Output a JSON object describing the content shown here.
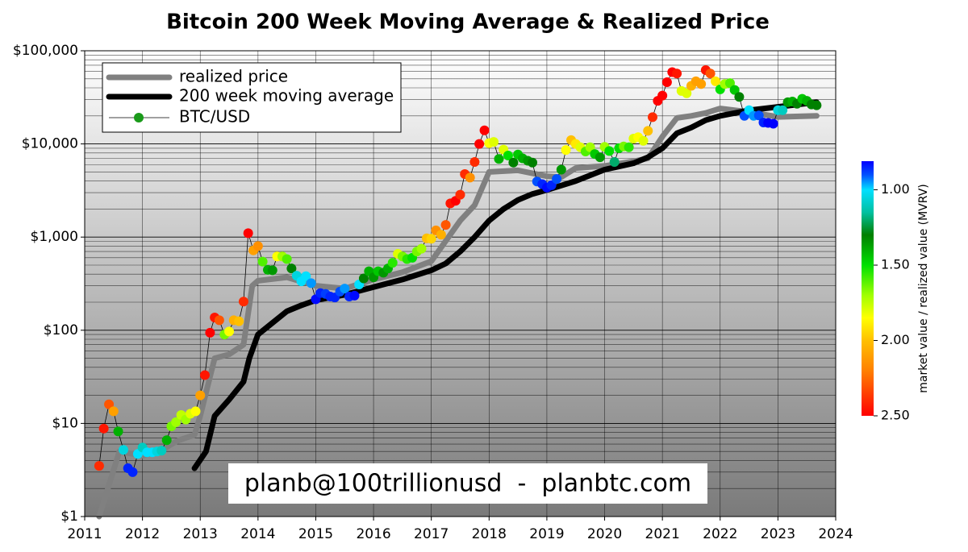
{
  "chart_data": {
    "type": "line",
    "title": "Bitcoin 200 Week Moving Average & Realized Price",
    "annotation": "planb@100trillionusd  -  planbtc.com",
    "xlim": [
      2011,
      2024
    ],
    "xticks": [
      2011,
      2012,
      2013,
      2014,
      2015,
      2016,
      2017,
      2018,
      2019,
      2020,
      2021,
      2022,
      2023,
      2024
    ],
    "ylim": [
      1,
      100000
    ],
    "log_y": true,
    "yticks": [
      {
        "value": 1,
        "label": "$1"
      },
      {
        "value": 10,
        "label": "$10"
      },
      {
        "value": 100,
        "label": "$100"
      },
      {
        "value": 1000,
        "label": "$1,000"
      },
      {
        "value": 10000,
        "label": "$10,000"
      },
      {
        "value": 100000,
        "label": "$100,000"
      }
    ],
    "yminor_ticks": [
      2,
      3,
      4,
      5,
      6,
      7,
      8,
      9,
      20,
      30,
      40,
      50,
      60,
      70,
      80,
      90,
      200,
      300,
      400,
      500,
      600,
      700,
      800,
      900,
      2000,
      3000,
      4000,
      5000,
      6000,
      7000,
      8000,
      9000,
      20000,
      30000,
      40000,
      50000,
      60000,
      70000,
      80000,
      90000
    ],
    "grid": true,
    "legend": "upper left",
    "series": [
      {
        "name": "realized price",
        "color": "#808080",
        "x": [
          2011.25,
          2011.6,
          2012.0,
          2012.3,
          2012.6,
          2012.9,
          2013.0,
          2013.25,
          2013.5,
          2013.75,
          2013.9,
          2014.0,
          2014.5,
          2015.0,
          2015.5,
          2016.0,
          2016.5,
          2017.0,
          2017.5,
          2017.75,
          2018.0,
          2018.5,
          2019.0,
          2019.25,
          2019.5,
          2020.0,
          2020.5,
          2020.75,
          2021.0,
          2021.25,
          2021.5,
          2021.75,
          2022.0,
          2022.5,
          2023.0,
          2023.67
        ],
        "values": [
          1,
          5,
          4.5,
          5,
          6.5,
          7.5,
          12,
          50,
          55,
          70,
          300,
          340,
          370,
          300,
          280,
          350,
          420,
          550,
          1500,
          2200,
          5000,
          5200,
          4500,
          4400,
          5500,
          5800,
          6500,
          7000,
          12000,
          19000,
          20000,
          21500,
          24000,
          22000,
          19500,
          20000
        ]
      },
      {
        "name": "200 week moving average",
        "color": "#000000",
        "x": [
          2012.9,
          2013.1,
          2013.25,
          2013.5,
          2013.75,
          2013.85,
          2014.0,
          2014.25,
          2014.5,
          2014.75,
          2015.0,
          2015.5,
          2016.0,
          2016.5,
          2017.0,
          2017.25,
          2017.5,
          2017.75,
          2018.0,
          2018.25,
          2018.5,
          2018.75,
          2019.0,
          2019.5,
          2020.0,
          2020.5,
          2020.75,
          2021.0,
          2021.25,
          2021.5,
          2021.75,
          2022.0,
          2022.5,
          2023.0,
          2023.67
        ],
        "values": [
          3.3,
          5,
          12,
          18,
          28,
          50,
          90,
          120,
          160,
          185,
          210,
          240,
          290,
          350,
          440,
          520,
          700,
          1000,
          1500,
          2000,
          2500,
          2900,
          3200,
          4000,
          5300,
          6200,
          7200,
          9000,
          13000,
          15000,
          18000,
          20000,
          23000,
          25000,
          28000
        ]
      },
      {
        "name": "BTC/USD",
        "type": "scatter",
        "color": "#1a9a1a",
        "x": [
          2011.25,
          2011.33,
          2011.42,
          2011.5,
          2011.58,
          2011.67,
          2011.75,
          2011.83,
          2011.92,
          2012.0,
          2012.08,
          2012.17,
          2012.25,
          2012.33,
          2012.42,
          2012.5,
          2012.58,
          2012.67,
          2012.75,
          2012.83,
          2012.92,
          2013.0,
          2013.08,
          2013.17,
          2013.25,
          2013.33,
          2013.42,
          2013.5,
          2013.58,
          2013.67,
          2013.75,
          2013.83,
          2013.92,
          2014.0,
          2014.08,
          2014.17,
          2014.25,
          2014.33,
          2014.42,
          2014.5,
          2014.58,
          2014.67,
          2014.75,
          2014.83,
          2014.92,
          2015.0,
          2015.08,
          2015.17,
          2015.25,
          2015.33,
          2015.42,
          2015.5,
          2015.58,
          2015.67,
          2015.75,
          2015.83,
          2015.92,
          2016.0,
          2016.08,
          2016.17,
          2016.25,
          2016.33,
          2016.42,
          2016.5,
          2016.58,
          2016.67,
          2016.75,
          2016.83,
          2016.92,
          2017.0,
          2017.08,
          2017.17,
          2017.25,
          2017.33,
          2017.42,
          2017.5,
          2017.58,
          2017.67,
          2017.75,
          2017.83,
          2017.92,
          2018.0,
          2018.08,
          2018.17,
          2018.25,
          2018.33,
          2018.42,
          2018.5,
          2018.58,
          2018.67,
          2018.75,
          2018.83,
          2018.92,
          2019.0,
          2019.08,
          2019.17,
          2019.25,
          2019.33,
          2019.42,
          2019.5,
          2019.58,
          2019.67,
          2019.75,
          2019.83,
          2019.92,
          2020.0,
          2020.08,
          2020.17,
          2020.25,
          2020.33,
          2020.42,
          2020.5,
          2020.58,
          2020.67,
          2020.75,
          2020.83,
          2020.92,
          2021.0,
          2021.08,
          2021.17,
          2021.25,
          2021.33,
          2021.42,
          2021.5,
          2021.58,
          2021.67,
          2021.75,
          2021.83,
          2021.92,
          2022.0,
          2022.08,
          2022.17,
          2022.25,
          2022.33,
          2022.42,
          2022.5,
          2022.58,
          2022.67,
          2022.75,
          2022.83,
          2022.92,
          2023.0,
          2023.08,
          2023.17,
          2023.25,
          2023.33,
          2023.42,
          2023.5,
          2023.58,
          2023.67
        ],
        "values": [
          3.5,
          8.8,
          16,
          13.5,
          8.2,
          5.2,
          3.3,
          3.0,
          4.7,
          5.5,
          4.9,
          4.9,
          5.0,
          5.1,
          6.6,
          9.3,
          10.3,
          12.3,
          11,
          12.7,
          13.5,
          20,
          33,
          94,
          137,
          128,
          90,
          97,
          128,
          125,
          203,
          1100,
          720,
          800,
          545,
          445,
          440,
          620,
          620,
          580,
          460,
          385,
          335,
          380,
          320,
          215,
          250,
          245,
          230,
          225,
          260,
          280,
          230,
          235,
          310,
          360,
          430,
          370,
          430,
          415,
          460,
          530,
          660,
          620,
          580,
          600,
          700,
          750,
          970,
          960,
          1180,
          1060,
          1350,
          2300,
          2450,
          2850,
          4750,
          4350,
          6400,
          10000,
          14000,
          10200,
          10500,
          6900,
          8700,
          7500,
          6300,
          7700,
          7000,
          6600,
          6300,
          3950,
          3700,
          3400,
          3600,
          4200,
          5300,
          8600,
          11000,
          10000,
          9200,
          8300,
          9200,
          7800,
          7200,
          9300,
          8400,
          6400,
          9000,
          9400,
          9200,
          11400,
          11800,
          10800,
          13800,
          19400,
          29000,
          33000,
          46000,
          59000,
          57000,
          37000,
          35000,
          42000,
          47000,
          44000,
          62000,
          57000,
          47000,
          38500,
          44000,
          45000,
          38000,
          32000,
          20000,
          23000,
          20000,
          20200,
          17000,
          16800,
          16500,
          23000,
          23000,
          28000,
          28500,
          27000,
          30500,
          29000,
          26500,
          26000
        ],
        "mvrv": [
          2.4,
          2.45,
          2.3,
          2.1,
          1.4,
          1.05,
          0.85,
          0.85,
          1.0,
          1.1,
          1.0,
          1.0,
          1.05,
          1.1,
          1.4,
          1.65,
          1.7,
          1.75,
          1.7,
          1.8,
          1.85,
          2.1,
          2.45,
          2.5,
          2.45,
          2.3,
          1.65,
          1.85,
          2.05,
          2.0,
          2.4,
          2.5,
          2.1,
          2.15,
          1.6,
          1.4,
          1.35,
          1.85,
          1.7,
          1.6,
          1.3,
          1.05,
          1.0,
          1.0,
          0.95,
          0.82,
          0.85,
          0.88,
          0.85,
          0.85,
          0.9,
          0.95,
          0.85,
          0.82,
          1.0,
          1.3,
          1.4,
          1.35,
          1.45,
          1.35,
          1.4,
          1.55,
          1.8,
          1.65,
          1.55,
          1.5,
          1.65,
          1.7,
          2.0,
          1.95,
          2.15,
          2.05,
          2.3,
          2.45,
          2.5,
          2.4,
          2.4,
          2.15,
          2.4,
          2.5,
          2.5,
          1.85,
          1.8,
          1.4,
          1.8,
          1.5,
          1.3,
          1.45,
          1.4,
          1.35,
          1.3,
          0.9,
          0.85,
          0.82,
          0.85,
          0.9,
          1.35,
          1.85,
          2.0,
          1.9,
          1.8,
          1.6,
          1.7,
          1.45,
          1.35,
          1.7,
          1.5,
          1.2,
          1.5,
          1.65,
          1.55,
          1.8,
          1.85,
          1.8,
          2.0,
          2.4,
          2.5,
          2.5,
          2.5,
          2.5,
          2.45,
          1.8,
          1.8,
          2.05,
          2.1,
          2.1,
          2.45,
          2.3,
          1.9,
          1.5,
          1.7,
          1.6,
          1.45,
          1.3,
          0.9,
          1.0,
          0.95,
          0.9,
          0.85,
          0.8,
          0.8,
          1.05,
          1.1,
          1.35,
          1.4,
          1.3,
          1.45,
          1.4,
          1.3,
          1.3
        ]
      }
    ],
    "colorbar": {
      "label": "market value / realized value (MVRV)",
      "lim": [
        0.81,
        2.5
      ],
      "ticks": [
        {
          "value": 1,
          "label": "1.00"
        },
        {
          "value": 1.5,
          "label": "1.50"
        },
        {
          "value": 2,
          "label": "2.00"
        },
        {
          "value": 2.5,
          "label": "2.50"
        }
      ],
      "colormap": [
        {
          "value": 0.81,
          "color": "#0000ff"
        },
        {
          "value": 0.9,
          "color": "#0050ff"
        },
        {
          "value": 1.0,
          "color": "#00e0ff"
        },
        {
          "value": 1.15,
          "color": "#00c0a0"
        },
        {
          "value": 1.3,
          "color": "#008000"
        },
        {
          "value": 1.5,
          "color": "#00e000"
        },
        {
          "value": 1.7,
          "color": "#a0ff00"
        },
        {
          "value": 1.85,
          "color": "#ffff00"
        },
        {
          "value": 2.0,
          "color": "#ffc000"
        },
        {
          "value": 2.2,
          "color": "#ff8000"
        },
        {
          "value": 2.5,
          "color": "#ff0000"
        }
      ]
    }
  }
}
